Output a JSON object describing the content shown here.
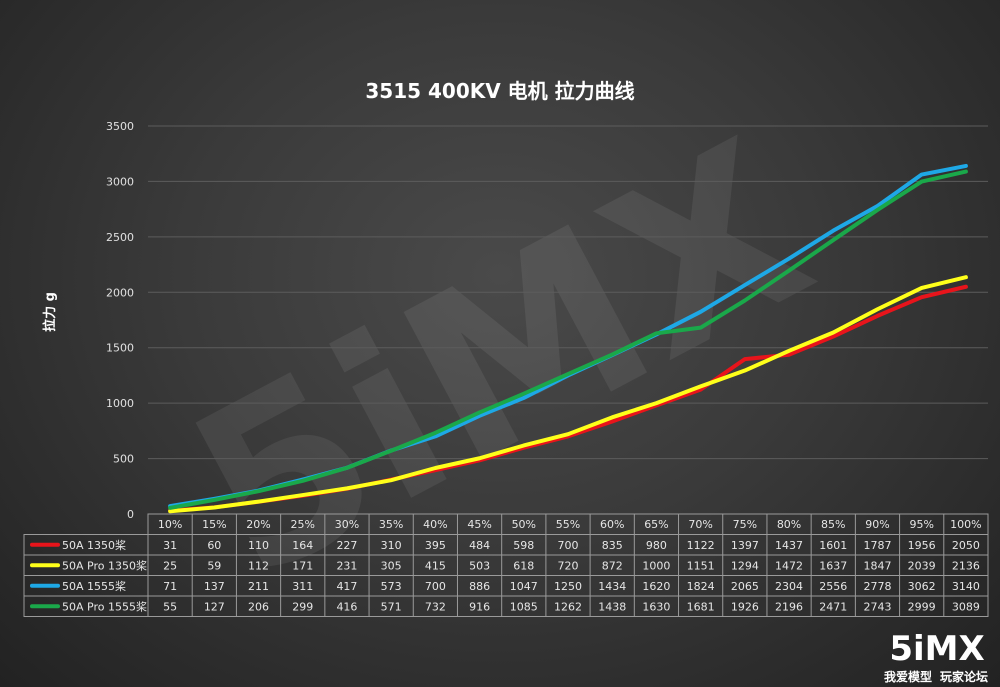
{
  "chart_data": {
    "type": "line",
    "title": "3515 400KV 电机 拉力曲线",
    "ylabel": "拉力 g",
    "xlabel": "",
    "ylim": [
      0,
      3500
    ],
    "yticks": [
      0,
      500,
      1000,
      1500,
      2000,
      2500,
      3000,
      3500
    ],
    "grid": true,
    "legend_placement": "data-table-bottom",
    "categories": [
      "10%",
      "15%",
      "20%",
      "25%",
      "30%",
      "35%",
      "40%",
      "45%",
      "50%",
      "55%",
      "60%",
      "65%",
      "70%",
      "75%",
      "80%",
      "85%",
      "90%",
      "95%",
      "100%"
    ],
    "series": [
      {
        "name": "50A 1350桨",
        "color": "#e8141b",
        "values": [
          31,
          60,
          110,
          164,
          227,
          310,
          395,
          484,
          598,
          700,
          835,
          980,
          1122,
          1397,
          1437,
          1601,
          1787,
          1956,
          2050
        ]
      },
      {
        "name": "50A Pro 1350桨",
        "color": "#ffff1a",
        "values": [
          25,
          59,
          112,
          171,
          231,
          305,
          415,
          503,
          618,
          720,
          872,
          1000,
          1151,
          1294,
          1472,
          1637,
          1847,
          2039,
          2136
        ]
      },
      {
        "name": "50A 1555桨",
        "color": "#1ea8e6",
        "values": [
          71,
          137,
          211,
          311,
          417,
          573,
          700,
          886,
          1047,
          1250,
          1434,
          1620,
          1824,
          2065,
          2304,
          2556,
          2778,
          3062,
          3140
        ]
      },
      {
        "name": "50A Pro 1555桨",
        "color": "#1aa84a",
        "values": [
          55,
          127,
          206,
          299,
          416,
          571,
          732,
          916,
          1085,
          1262,
          1438,
          1630,
          1681,
          1926,
          2196,
          2471,
          2743,
          2999,
          3089
        ]
      }
    ]
  },
  "watermark": {
    "text": "5iMX"
  },
  "logo": {
    "main": "5iMX",
    "sub_left": "我爱模型",
    "sub_right": "玩家论坛"
  }
}
